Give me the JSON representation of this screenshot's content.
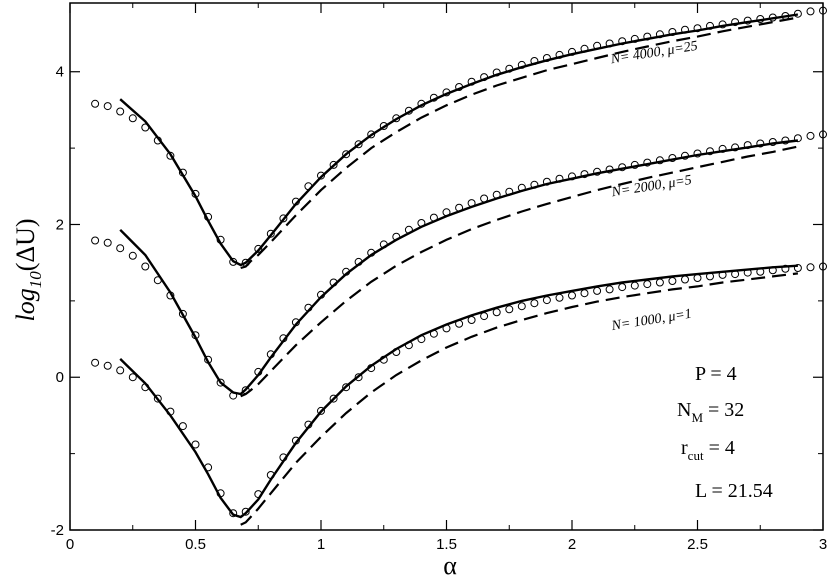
{
  "chart_data": {
    "type": "line",
    "xlabel": "α",
    "ylabel": {
      "prefix": "log",
      "sub": "10",
      "suffix": "(ΔU)"
    },
    "xlim": [
      0,
      3
    ],
    "ylim": [
      -2,
      4.9
    ],
    "xticks": [
      "0",
      "0.5",
      "1",
      "1.5",
      "2",
      "2.5",
      "3"
    ],
    "yticks": [
      "-2",
      "0",
      "2",
      "4"
    ],
    "xtick_values": [
      0,
      0.5,
      1,
      1.5,
      2,
      2.5,
      3
    ],
    "ytick_values": [
      -2,
      0,
      2,
      4
    ],
    "grid": false,
    "curve_labels": [
      {
        "text": "N= 4000, μ=25",
        "x": 2.33,
        "y": 4.2
      },
      {
        "text": "N= 2000, μ=5",
        "x": 2.32,
        "y": 2.45
      },
      {
        "text": "N= 1000, μ=1",
        "x": 2.32,
        "y": 0.7
      }
    ],
    "parameters": {
      "p": "P = 4",
      "nm": {
        "main": "N",
        "sub": "M",
        "rest": " = 32"
      },
      "rcut": {
        "main": "r",
        "sub": "cut",
        "rest": " = 4"
      },
      "l": "L = 21.54"
    },
    "series": [
      {
        "curve_label": "N= 4000, μ=25",
        "circles": {
          "x": [
            0.1,
            0.15,
            0.2,
            0.25,
            0.3,
            0.35,
            0.4,
            0.45,
            0.5,
            0.55,
            0.6,
            0.65,
            0.7,
            0.75,
            0.8,
            0.85,
            0.9,
            0.95,
            1.0,
            1.05,
            1.1,
            1.15,
            1.2,
            1.25,
            1.3,
            1.35,
            1.4,
            1.45,
            1.5,
            1.55,
            1.6,
            1.65,
            1.7,
            1.75,
            1.8,
            1.85,
            1.9,
            1.95,
            2.0,
            2.05,
            2.1,
            2.15,
            2.2,
            2.25,
            2.3,
            2.35,
            2.4,
            2.45,
            2.5,
            2.55,
            2.6,
            2.65,
            2.7,
            2.75,
            2.8,
            2.85,
            2.9,
            2.95,
            3.0
          ],
          "y": [
            3.58,
            3.55,
            3.48,
            3.39,
            3.27,
            3.1,
            2.9,
            2.68,
            2.4,
            2.1,
            1.8,
            1.51,
            1.5,
            1.68,
            1.88,
            2.08,
            2.3,
            2.5,
            2.64,
            2.78,
            2.92,
            3.05,
            3.18,
            3.29,
            3.39,
            3.49,
            3.58,
            3.66,
            3.73,
            3.8,
            3.87,
            3.93,
            3.99,
            4.04,
            4.09,
            4.14,
            4.18,
            4.22,
            4.26,
            4.3,
            4.34,
            4.37,
            4.4,
            4.43,
            4.46,
            4.49,
            4.52,
            4.55,
            4.57,
            4.6,
            4.62,
            4.65,
            4.67,
            4.69,
            4.71,
            4.73,
            4.76,
            4.79,
            4.8
          ]
        },
        "solid": {
          "x": [
            0.2,
            0.3,
            0.4,
            0.5,
            0.55,
            0.6,
            0.65,
            0.68,
            0.7,
            0.75,
            0.8,
            0.9,
            1.0,
            1.1,
            1.2,
            1.3,
            1.4,
            1.5,
            1.6,
            1.7,
            1.8,
            1.9,
            2.0,
            2.1,
            2.2,
            2.3,
            2.4,
            2.5,
            2.6,
            2.7,
            2.8,
            2.9
          ],
          "y": [
            3.64,
            3.35,
            2.92,
            2.37,
            2.05,
            1.75,
            1.52,
            1.47,
            1.5,
            1.66,
            1.86,
            2.27,
            2.62,
            2.92,
            3.17,
            3.38,
            3.56,
            3.71,
            3.84,
            3.96,
            4.06,
            4.15,
            4.23,
            4.3,
            4.37,
            4.43,
            4.49,
            4.54,
            4.6,
            4.65,
            4.7,
            4.75
          ]
        },
        "dashed": {
          "x": [
            0.68,
            0.7,
            0.72,
            0.75,
            0.8,
            0.9,
            1.0,
            1.1,
            1.2,
            1.3,
            1.4,
            1.5,
            1.6,
            1.7,
            1.8,
            1.9,
            2.0,
            2.1,
            2.2,
            2.3,
            2.4,
            2.5,
            2.6,
            2.7,
            2.8,
            2.9
          ],
          "y": [
            1.43,
            1.45,
            1.52,
            1.6,
            1.77,
            2.12,
            2.45,
            2.74,
            3.0,
            3.21,
            3.4,
            3.56,
            3.7,
            3.82,
            3.92,
            4.02,
            4.1,
            4.18,
            4.26,
            4.33,
            4.4,
            4.46,
            4.53,
            4.59,
            4.65,
            4.71
          ]
        }
      },
      {
        "curve_label": "N= 2000, μ=5",
        "circles": {
          "x": [
            0.1,
            0.15,
            0.2,
            0.25,
            0.3,
            0.35,
            0.4,
            0.45,
            0.5,
            0.55,
            0.6,
            0.65,
            0.7,
            0.75,
            0.8,
            0.85,
            0.9,
            0.95,
            1.0,
            1.05,
            1.1,
            1.15,
            1.2,
            1.25,
            1.3,
            1.35,
            1.4,
            1.45,
            1.5,
            1.55,
            1.6,
            1.65,
            1.7,
            1.75,
            1.8,
            1.85,
            1.9,
            1.95,
            2.0,
            2.05,
            2.1,
            2.15,
            2.2,
            2.25,
            2.3,
            2.35,
            2.4,
            2.45,
            2.5,
            2.55,
            2.6,
            2.65,
            2.7,
            2.75,
            2.8,
            2.85,
            2.9,
            2.95,
            3.0
          ],
          "y": [
            1.79,
            1.76,
            1.69,
            1.59,
            1.45,
            1.27,
            1.07,
            0.83,
            0.55,
            0.23,
            -0.07,
            -0.24,
            -0.17,
            0.07,
            0.3,
            0.51,
            0.72,
            0.91,
            1.08,
            1.24,
            1.38,
            1.51,
            1.63,
            1.74,
            1.84,
            1.93,
            2.02,
            2.09,
            2.16,
            2.22,
            2.28,
            2.34,
            2.39,
            2.43,
            2.48,
            2.52,
            2.56,
            2.6,
            2.63,
            2.66,
            2.69,
            2.72,
            2.75,
            2.78,
            2.81,
            2.84,
            2.87,
            2.9,
            2.93,
            2.96,
            2.99,
            3.01,
            3.04,
            3.06,
            3.08,
            3.1,
            3.13,
            3.16,
            3.18
          ]
        },
        "solid": {
          "x": [
            0.2,
            0.3,
            0.4,
            0.5,
            0.55,
            0.6,
            0.65,
            0.68,
            0.7,
            0.75,
            0.8,
            0.9,
            1.0,
            1.1,
            1.2,
            1.3,
            1.4,
            1.5,
            1.6,
            1.7,
            1.8,
            1.9,
            2.0,
            2.1,
            2.2,
            2.3,
            2.4,
            2.5,
            2.6,
            2.7,
            2.8,
            2.9
          ],
          "y": [
            1.93,
            1.6,
            1.11,
            0.52,
            0.2,
            -0.07,
            -0.2,
            -0.22,
            -0.16,
            0.03,
            0.26,
            0.69,
            1.05,
            1.35,
            1.6,
            1.8,
            1.97,
            2.11,
            2.23,
            2.34,
            2.44,
            2.53,
            2.6,
            2.67,
            2.73,
            2.79,
            2.85,
            2.91,
            2.96,
            3.01,
            3.06,
            3.1
          ]
        },
        "dashed": {
          "x": [
            0.68,
            0.7,
            0.72,
            0.75,
            0.8,
            0.9,
            1.0,
            1.1,
            1.2,
            1.3,
            1.4,
            1.5,
            1.6,
            1.7,
            1.8,
            1.9,
            2.0,
            2.1,
            2.2,
            2.3,
            2.4,
            2.5,
            2.6,
            2.7,
            2.8,
            2.9
          ],
          "y": [
            -0.25,
            -0.22,
            -0.17,
            -0.09,
            0.08,
            0.42,
            0.72,
            1.0,
            1.25,
            1.46,
            1.64,
            1.8,
            1.94,
            2.06,
            2.17,
            2.27,
            2.36,
            2.45,
            2.53,
            2.61,
            2.68,
            2.75,
            2.82,
            2.89,
            2.95,
            3.02
          ]
        }
      },
      {
        "curve_label": "N= 1000, μ=1",
        "circles": {
          "x": [
            0.1,
            0.15,
            0.2,
            0.25,
            0.3,
            0.35,
            0.4,
            0.45,
            0.5,
            0.55,
            0.6,
            0.65,
            0.7,
            0.75,
            0.8,
            0.85,
            0.9,
            0.95,
            1.0,
            1.05,
            1.1,
            1.15,
            1.2,
            1.25,
            1.3,
            1.35,
            1.4,
            1.45,
            1.5,
            1.55,
            1.6,
            1.65,
            1.7,
            1.75,
            1.8,
            1.85,
            1.9,
            1.95,
            2.0,
            2.05,
            2.1,
            2.15,
            2.2,
            2.25,
            2.3,
            2.35,
            2.4,
            2.45,
            2.5,
            2.55,
            2.6,
            2.65,
            2.7,
            2.75,
            2.8,
            2.85,
            2.9,
            2.95,
            3.0
          ],
          "y": [
            0.19,
            0.15,
            0.09,
            0.0,
            -0.13,
            -0.28,
            -0.45,
            -0.64,
            -0.88,
            -1.18,
            -1.52,
            -1.78,
            -1.76,
            -1.53,
            -1.28,
            -1.05,
            -0.83,
            -0.62,
            -0.44,
            -0.28,
            -0.13,
            0.0,
            0.12,
            0.23,
            0.33,
            0.42,
            0.5,
            0.57,
            0.64,
            0.7,
            0.75,
            0.8,
            0.85,
            0.89,
            0.93,
            0.97,
            1.01,
            1.04,
            1.07,
            1.1,
            1.13,
            1.15,
            1.18,
            1.2,
            1.22,
            1.24,
            1.26,
            1.28,
            1.3,
            1.32,
            1.34,
            1.35,
            1.37,
            1.38,
            1.4,
            1.42,
            1.43,
            1.44,
            1.45
          ]
        },
        "solid": {
          "x": [
            0.2,
            0.3,
            0.4,
            0.5,
            0.55,
            0.6,
            0.65,
            0.68,
            0.7,
            0.75,
            0.8,
            0.9,
            1.0,
            1.1,
            1.2,
            1.3,
            1.4,
            1.5,
            1.6,
            1.7,
            1.8,
            1.9,
            2.0,
            2.1,
            2.2,
            2.3,
            2.4,
            2.5,
            2.6,
            2.7,
            2.8,
            2.9
          ],
          "y": [
            0.24,
            -0.08,
            -0.5,
            -0.98,
            -1.27,
            -1.58,
            -1.8,
            -1.83,
            -1.78,
            -1.6,
            -1.34,
            -0.86,
            -0.45,
            -0.12,
            0.15,
            0.37,
            0.55,
            0.69,
            0.81,
            0.91,
            1.0,
            1.07,
            1.13,
            1.19,
            1.24,
            1.28,
            1.32,
            1.35,
            1.38,
            1.41,
            1.44,
            1.46
          ]
        },
        "dashed": {
          "x": [
            0.68,
            0.7,
            0.72,
            0.75,
            0.8,
            0.9,
            1.0,
            1.1,
            1.2,
            1.3,
            1.4,
            1.5,
            1.6,
            1.7,
            1.8,
            1.9,
            2.0,
            2.1,
            2.2,
            2.3,
            2.4,
            2.5,
            2.6,
            2.7,
            2.8,
            2.9
          ],
          "y": [
            -1.93,
            -1.9,
            -1.83,
            -1.72,
            -1.52,
            -1.12,
            -0.78,
            -0.47,
            -0.2,
            0.03,
            0.22,
            0.39,
            0.53,
            0.65,
            0.75,
            0.84,
            0.92,
            0.99,
            1.05,
            1.1,
            1.15,
            1.19,
            1.24,
            1.28,
            1.32,
            1.36
          ]
        }
      }
    ]
  }
}
